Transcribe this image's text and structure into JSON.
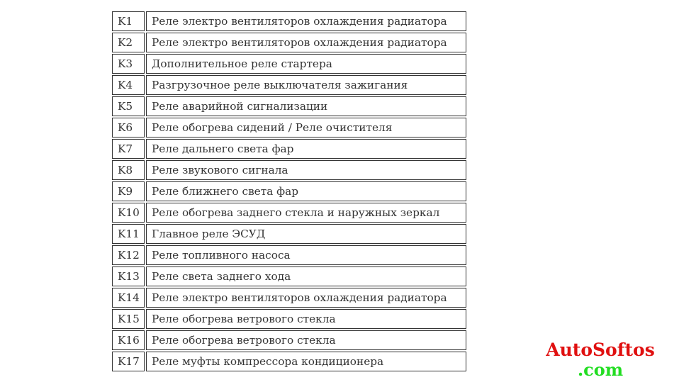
{
  "rows": [
    {
      "code": "K1",
      "desc": "Реле электро вентиляторов охлаждения радиатора"
    },
    {
      "code": "K2",
      "desc": "Реле электро вентиляторов охлаждения радиатора"
    },
    {
      "code": "K3",
      "desc": "Дополнительное реле стартера"
    },
    {
      "code": "K4",
      "desc": "Разгрузочное реле выключателя зажигания"
    },
    {
      "code": "K5",
      "desc": "Реле аварийной сигнализации"
    },
    {
      "code": "K6",
      "desc": "Реле обогрева сидений / Реле очистителя"
    },
    {
      "code": "K7",
      "desc": "Реле дальнего света фар"
    },
    {
      "code": "K8",
      "desc": "Реле звукового сигнала"
    },
    {
      "code": "K9",
      "desc": "Реле ближнего света фар"
    },
    {
      "code": "K10",
      "desc": "Реле обогрева заднего стекла и наружных зеркал"
    },
    {
      "code": "K11",
      "desc": "Главное реле ЭСУД"
    },
    {
      "code": "K12",
      "desc": "Реле топливного насоса"
    },
    {
      "code": "K13",
      "desc": "Реле света заднего хода"
    },
    {
      "code": "K14",
      "desc": "Реле электро вентиляторов охлаждения радиатора"
    },
    {
      "code": "K15",
      "desc": "Реле обогрева ветрового стекла"
    },
    {
      "code": "K16",
      "desc": "Реле обогрева ветрового стекла"
    },
    {
      "code": "K17",
      "desc": "Реле муфты компрессора кондиционера"
    }
  ],
  "watermark": {
    "line1": "AutoSoftos",
    "line2": ".com",
    "color1": "#e01010",
    "color2": "#22dd22"
  }
}
